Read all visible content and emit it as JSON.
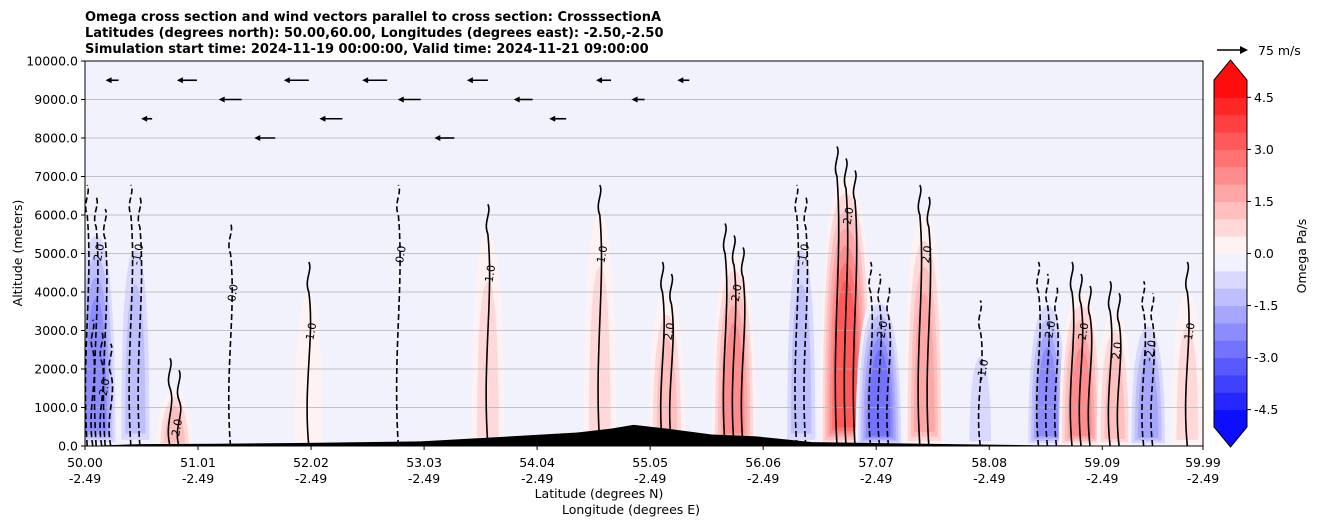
{
  "chart_data": {
    "type": "heatmap",
    "title_lines": [
      "Omega cross section and wind vectors parallel to cross section: CrosssectionA",
      "Latitudes (degrees north): 50.00,60.00, Longitudes (degrees east): -2.50,-2.50",
      "Simulation start time: 2024-11-19 00:00:00, Valid time: 2024-11-21 09:00:00"
    ],
    "ylabel": "Altitude (meters)",
    "xlabel_line1": "Latitude (degrees N)",
    "xlabel_line2": "Longitude (degrees E)",
    "ylim": [
      0,
      10000
    ],
    "y_ticks": [
      "0.0",
      "1000.0",
      "2000.0",
      "3000.0",
      "4000.0",
      "5000.0",
      "6000.0",
      "7000.0",
      "8000.0",
      "9000.0",
      "10000.0"
    ],
    "x_ticks": [
      {
        "lat": "50.00",
        "lon": "-2.49"
      },
      {
        "lat": "51.01",
        "lon": "-2.49"
      },
      {
        "lat": "52.02",
        "lon": "-2.49"
      },
      {
        "lat": "53.03",
        "lon": "-2.49"
      },
      {
        "lat": "54.04",
        "lon": "-2.49"
      },
      {
        "lat": "55.05",
        "lon": "-2.49"
      },
      {
        "lat": "56.06",
        "lon": "-2.49"
      },
      {
        "lat": "57.07",
        "lon": "-2.49"
      },
      {
        "lat": "58.08",
        "lon": "-2.49"
      },
      {
        "lat": "59.09",
        "lon": "-2.49"
      },
      {
        "lat": "59.99",
        "lon": "-2.49"
      }
    ],
    "grid": "horizontal",
    "colorbar": {
      "label": "Omega Pa/s",
      "min": -5.0,
      "max": 5.0,
      "step": 0.5,
      "ticks": [
        "-4.5",
        "-3.0",
        "-1.5",
        "0.0",
        "1.5",
        "3.0",
        "4.5"
      ],
      "extend": "both",
      "colormap": "bwr"
    },
    "quiver_key": {
      "label": "75 m/s"
    },
    "contour_labels": [
      "0.0",
      "1.0",
      "-1.0",
      "2.0",
      "-2.0"
    ],
    "omega_bands": [
      {
        "lat": 50.15,
        "height": 2500,
        "omega": -3.5
      },
      {
        "lat": 50.1,
        "height": 6000,
        "omega": -2.5
      },
      {
        "lat": 50.45,
        "height": 6000,
        "omega": -1.5
      },
      {
        "lat": 50.8,
        "height": 1500,
        "omega": 1.5
      },
      {
        "lat": 51.3,
        "height": 5000,
        "omega": -0.5
      },
      {
        "lat": 52.0,
        "height": 4000,
        "omega": 0.5
      },
      {
        "lat": 52.8,
        "height": 6000,
        "omega": -0.5
      },
      {
        "lat": 53.6,
        "height": 5500,
        "omega": 1.0
      },
      {
        "lat": 54.6,
        "height": 6000,
        "omega": 1.0
      },
      {
        "lat": 55.2,
        "height": 4000,
        "omega": 1.5
      },
      {
        "lat": 55.8,
        "height": 5000,
        "omega": 2.5
      },
      {
        "lat": 56.4,
        "height": 6000,
        "omega": -1.5
      },
      {
        "lat": 56.8,
        "height": 7000,
        "omega": 3.5
      },
      {
        "lat": 57.1,
        "height": 4000,
        "omega": -3.0
      },
      {
        "lat": 57.5,
        "height": 6000,
        "omega": 2.0
      },
      {
        "lat": 58.0,
        "height": 3000,
        "omega": -1.0
      },
      {
        "lat": 58.6,
        "height": 4000,
        "omega": -2.5
      },
      {
        "lat": 58.9,
        "height": 4000,
        "omega": 2.5
      },
      {
        "lat": 59.2,
        "height": 3500,
        "omega": 1.5
      },
      {
        "lat": 59.5,
        "height": 3500,
        "omega": -2.0
      },
      {
        "lat": 59.85,
        "height": 4000,
        "omega": 1.0
      }
    ],
    "terrain": [
      {
        "lat": 50.0,
        "height": 0
      },
      {
        "lat": 50.5,
        "height": 50
      },
      {
        "lat": 51.2,
        "height": 60
      },
      {
        "lat": 52.0,
        "height": 80
      },
      {
        "lat": 53.0,
        "height": 120
      },
      {
        "lat": 53.8,
        "height": 250
      },
      {
        "lat": 54.4,
        "height": 350
      },
      {
        "lat": 54.7,
        "height": 450
      },
      {
        "lat": 54.9,
        "height": 550
      },
      {
        "lat": 55.2,
        "height": 450
      },
      {
        "lat": 55.6,
        "height": 300
      },
      {
        "lat": 56.0,
        "height": 250
      },
      {
        "lat": 56.5,
        "height": 100
      },
      {
        "lat": 57.5,
        "height": 60
      },
      {
        "lat": 58.5,
        "height": 20
      },
      {
        "lat": 59.99,
        "height": 0
      }
    ],
    "wind_vectors": [
      {
        "lat": 50.3,
        "height": 9500,
        "u": -8
      },
      {
        "lat": 50.6,
        "height": 8500,
        "u": -6
      },
      {
        "lat": 51.0,
        "height": 9500,
        "u": -15
      },
      {
        "lat": 51.4,
        "height": 9000,
        "u": -18
      },
      {
        "lat": 51.7,
        "height": 8000,
        "u": -16
      },
      {
        "lat": 52.0,
        "height": 9500,
        "u": -20
      },
      {
        "lat": 52.3,
        "height": 8500,
        "u": -18
      },
      {
        "lat": 52.7,
        "height": 9500,
        "u": -20
      },
      {
        "lat": 53.0,
        "height": 9000,
        "u": -18
      },
      {
        "lat": 53.3,
        "height": 8000,
        "u": -15
      },
      {
        "lat": 53.6,
        "height": 9500,
        "u": -16
      },
      {
        "lat": 54.0,
        "height": 9000,
        "u": -14
      },
      {
        "lat": 54.3,
        "height": 8500,
        "u": -12
      },
      {
        "lat": 54.7,
        "height": 9500,
        "u": -10
      },
      {
        "lat": 55.0,
        "height": 9000,
        "u": -8
      },
      {
        "lat": 55.4,
        "height": 9500,
        "u": -7
      }
    ]
  }
}
